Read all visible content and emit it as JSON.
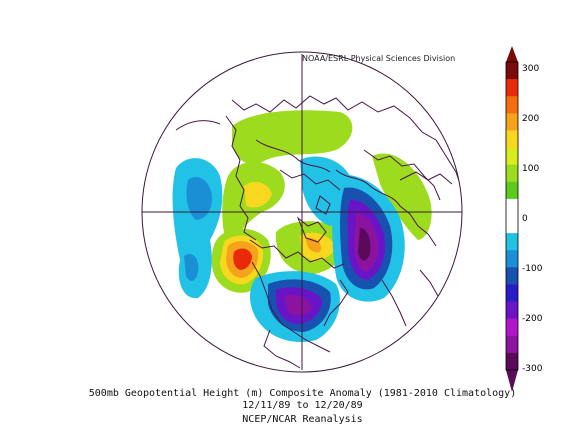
{
  "credit": "NOAA/ESRL Physical Sciences Division",
  "caption": {
    "line1": "500mb Geopotential Height (m) Composite Anomaly (1981-2010 Climatology)",
    "line2": "12/11/89  to 12/20/89",
    "line3": "NCEP/NCAR Reanalysis"
  },
  "colorbar": {
    "tick_labels": [
      "300",
      "200",
      "100",
      "0",
      "-100",
      "-200",
      "-300"
    ],
    "colors": [
      "#7a0a0a",
      "#e82a0a",
      "#f56d0f",
      "#f5a31a",
      "#f8d81e",
      "#d7eb1e",
      "#9ddb1e",
      "#5dcb1e",
      "#ffffff",
      "#ffffff",
      "#21c2e6",
      "#1b8fd6",
      "#1852b0",
      "#2a1ac8",
      "#6a14c8",
      "#b214c8",
      "#8c12a0",
      "#5a0a5a"
    ]
  },
  "colors": {
    "boundary": "#4b1548",
    "background": "#ffffff"
  }
}
